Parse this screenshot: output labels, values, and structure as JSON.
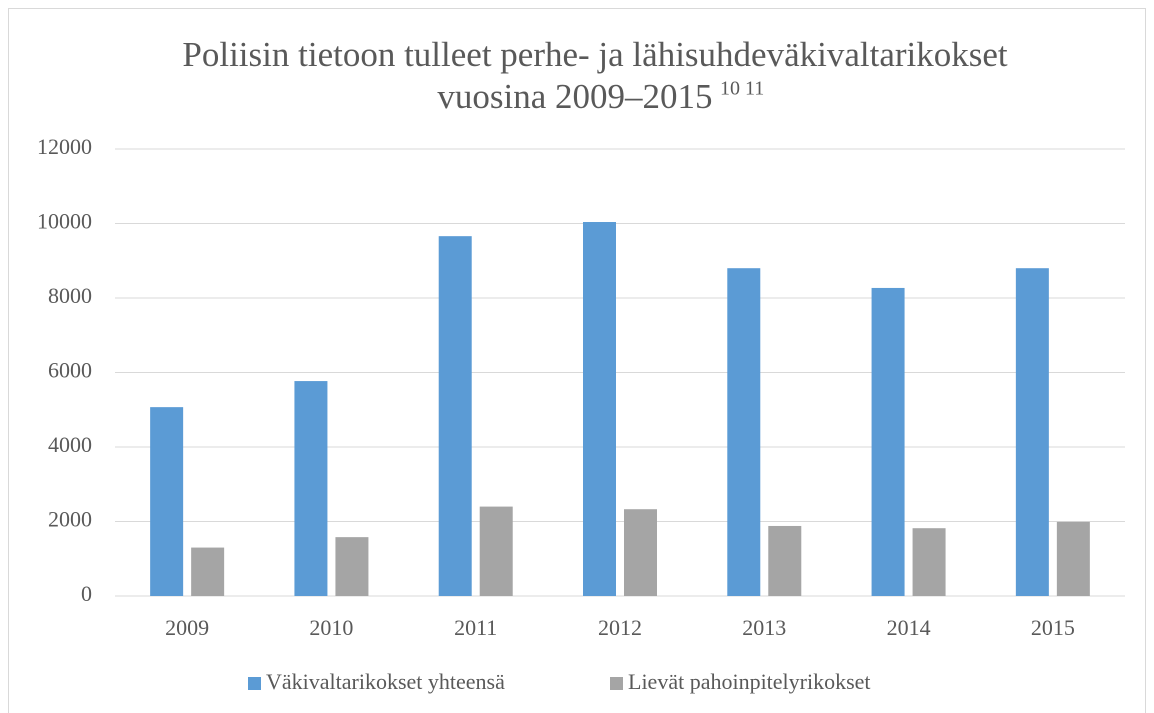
{
  "chart_data": {
    "type": "bar",
    "title_lines": [
      "Poliisin tietoon tulleet perhe- ja lähisuhdeväkivaltarikokset",
      "vuosina 2009–2015"
    ],
    "title_note": "10 11",
    "categories": [
      "2009",
      "2010",
      "2011",
      "2012",
      "2013",
      "2014",
      "2015"
    ],
    "series": [
      {
        "name": "Väkivaltarikokset yhteensä",
        "color": "#5b9bd5",
        "values": [
          5070,
          5770,
          9660,
          10040,
          8800,
          8270,
          8800
        ]
      },
      {
        "name": "Lievät pahoinpitelyrikokset",
        "color": "#a5a5a5",
        "values": [
          1300,
          1580,
          2400,
          2330,
          1880,
          1820,
          1990
        ]
      }
    ],
    "ylim": [
      0,
      12000
    ],
    "yticks": [
      0,
      2000,
      4000,
      6000,
      8000,
      10000,
      12000
    ],
    "grid": true,
    "legend": "bottom"
  }
}
